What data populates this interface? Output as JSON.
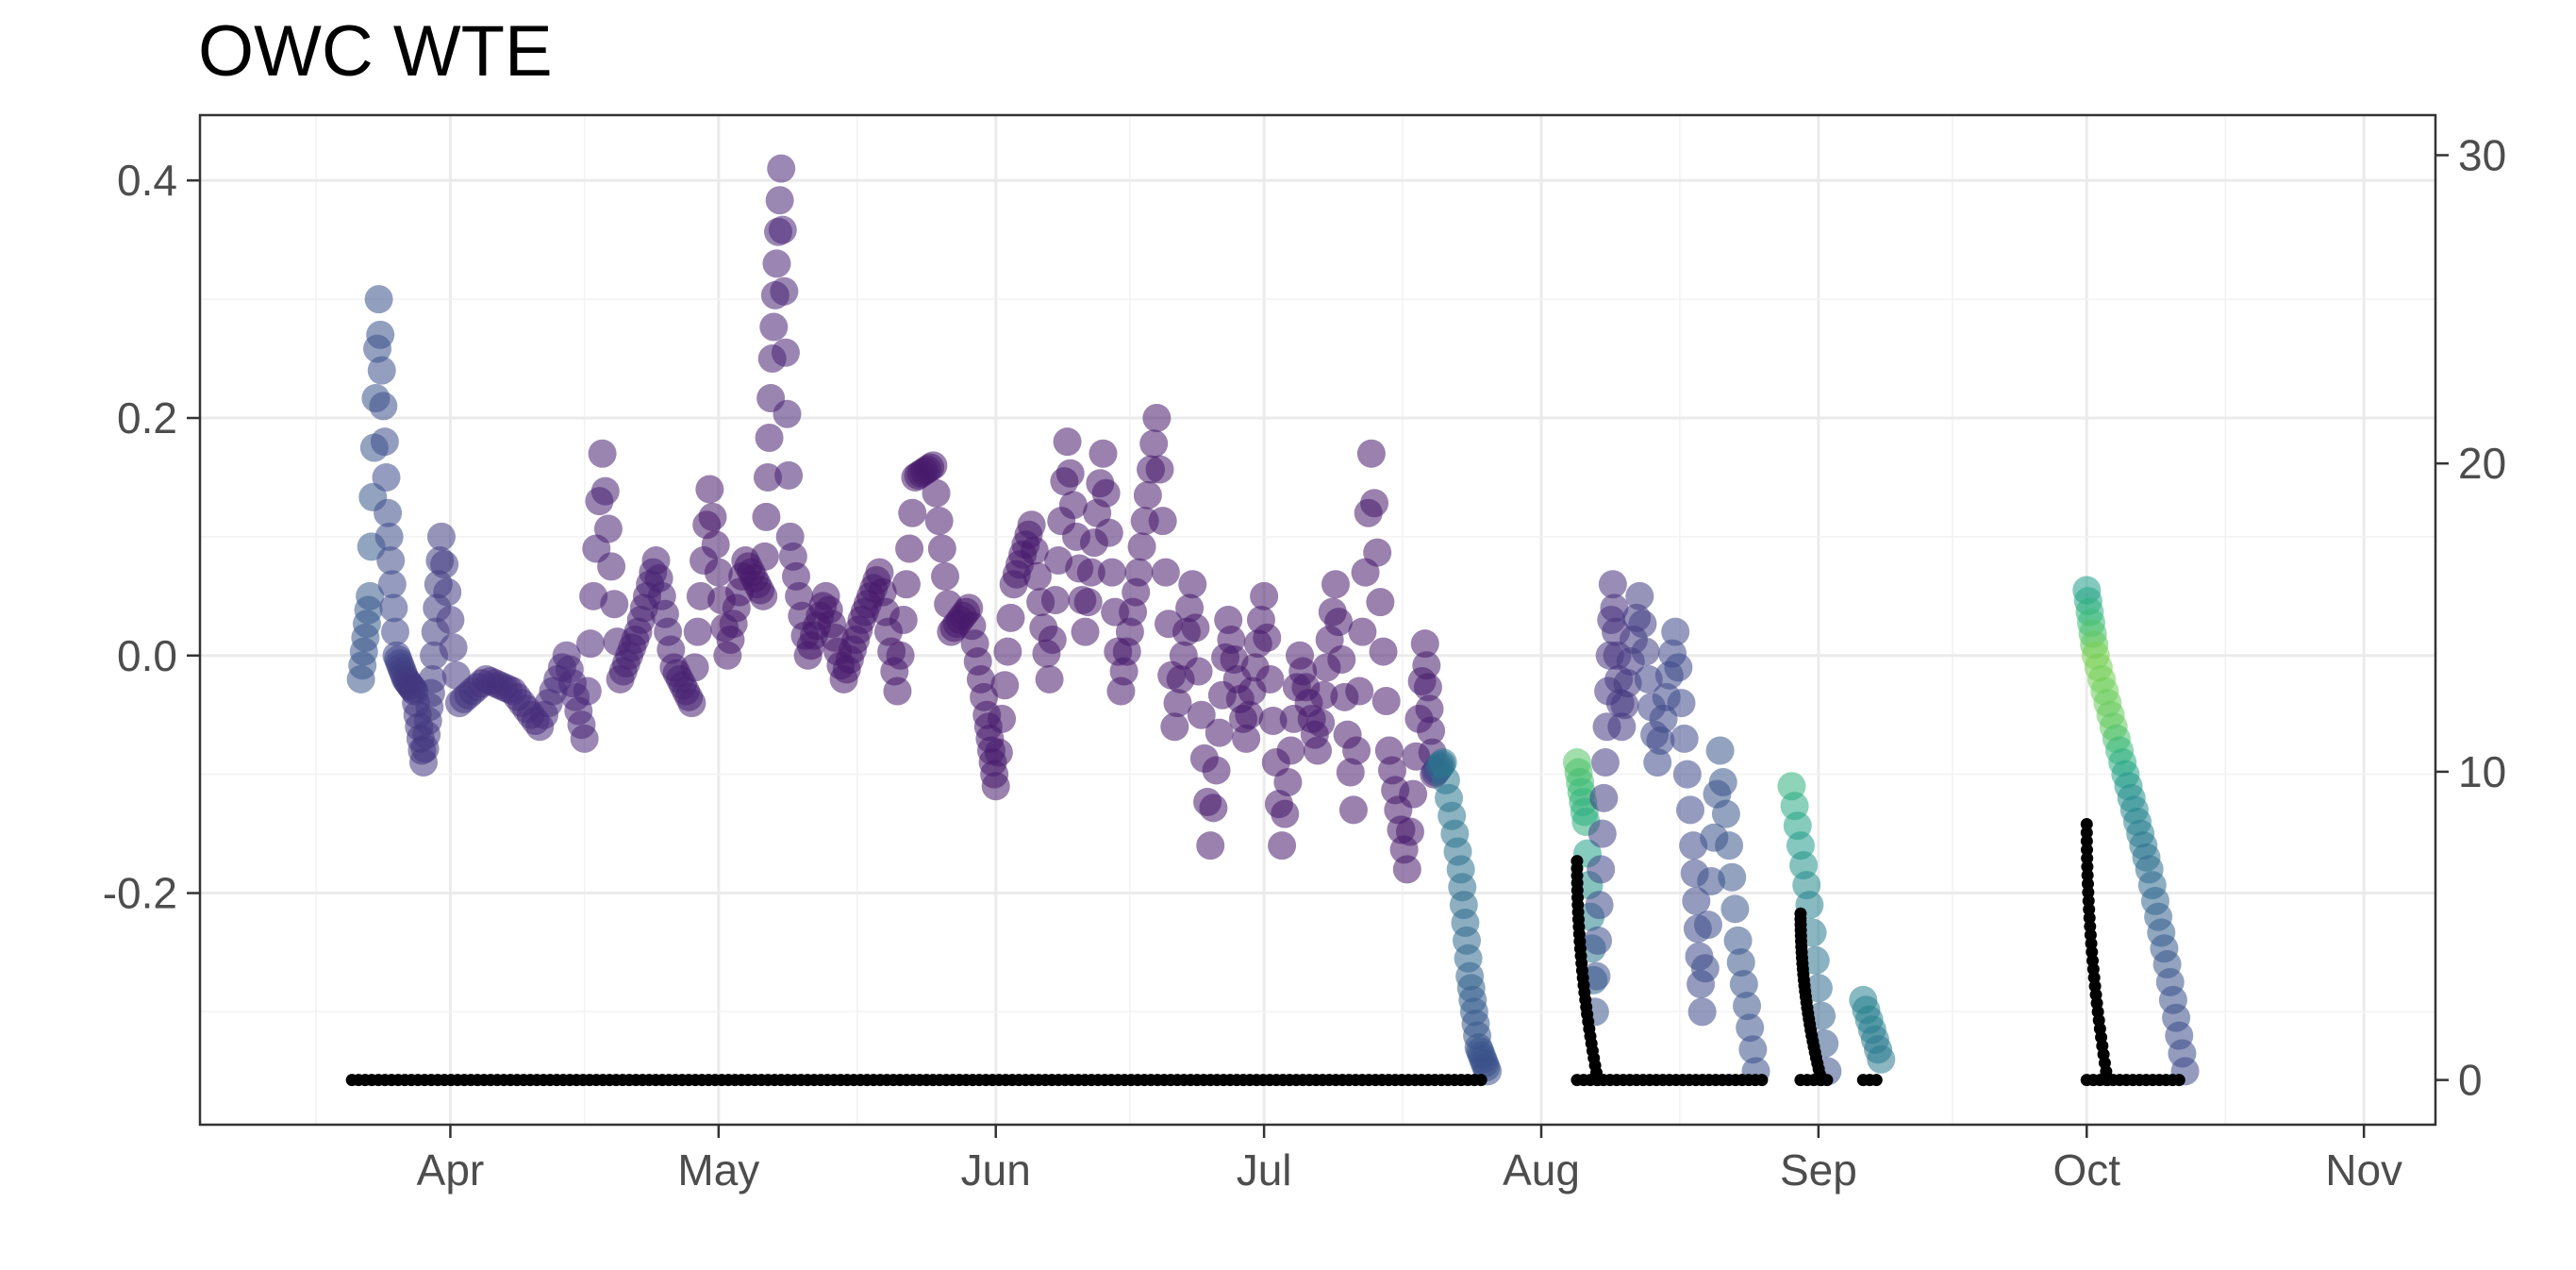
{
  "chart_data": {
    "type": "scatter",
    "title": "OWC WTE",
    "xlabel": "",
    "ylabel": "",
    "grid": true,
    "legend": "none",
    "x_ticks": [
      {
        "date": "2021-04-01",
        "label": "Apr"
      },
      {
        "date": "2021-05-01",
        "label": "May"
      },
      {
        "date": "2021-06-01",
        "label": "Jun"
      },
      {
        "date": "2021-07-01",
        "label": "Jul"
      },
      {
        "date": "2021-08-01",
        "label": "Aug"
      },
      {
        "date": "2021-09-01",
        "label": "Sep"
      },
      {
        "date": "2021-10-01",
        "label": "Oct"
      },
      {
        "date": "2021-11-01",
        "label": "Nov"
      }
    ],
    "x_range": [
      "2021-03-04",
      "2021-11-09"
    ],
    "y_left": {
      "range": [
        -0.395,
        0.455
      ],
      "ticks": [
        -0.2,
        0.0,
        0.2,
        0.4
      ],
      "tick_labels": [
        "-0.2",
        "0.0",
        "0.2",
        "0.4"
      ]
    },
    "y_right": {
      "range": [
        -1.45,
        31.3
      ],
      "ticks": [
        0,
        10,
        20,
        30
      ],
      "tick_labels": [
        "0",
        "10",
        "20",
        "30"
      ]
    },
    "color_scale": {
      "name": "viridis",
      "low": "#440154",
      "mid_low": "#3b528b",
      "mid": "#21908c",
      "mid_high": "#5dc863",
      "high": "#8fd744"
    },
    "series": [
      {
        "axis": "left",
        "marker": "large semi-transparent circle",
        "color_by": "viridis value 0-1",
        "points": [
          {
            "x": "2021-03-22",
            "y": -0.02,
            "c": 0.3
          },
          {
            "x": "2021-03-23",
            "y": 0.05,
            "c": 0.32
          },
          {
            "x": "2021-03-24",
            "y": 0.3,
            "c": 0.28
          },
          {
            "x": "2021-03-25",
            "y": 0.12,
            "c": 0.26
          },
          {
            "x": "2021-03-26",
            "y": 0.0,
            "c": 0.24
          },
          {
            "x": "2021-03-27",
            "y": -0.02,
            "c": 0.2
          },
          {
            "x": "2021-03-28",
            "y": -0.03,
            "c": 0.18
          },
          {
            "x": "2021-03-29",
            "y": -0.09,
            "c": 0.18
          },
          {
            "x": "2021-03-30",
            "y": -0.02,
            "c": 0.2
          },
          {
            "x": "2021-03-31",
            "y": 0.1,
            "c": 0.2
          },
          {
            "x": "2021-04-02",
            "y": -0.04,
            "c": 0.18
          },
          {
            "x": "2021-04-05",
            "y": -0.02,
            "c": 0.16
          },
          {
            "x": "2021-04-08",
            "y": -0.03,
            "c": 0.15
          },
          {
            "x": "2021-04-11",
            "y": -0.06,
            "c": 0.14
          },
          {
            "x": "2021-04-14",
            "y": 0.0,
            "c": 0.13
          },
          {
            "x": "2021-04-16",
            "y": -0.07,
            "c": 0.12
          },
          {
            "x": "2021-04-18",
            "y": 0.17,
            "c": 0.1
          },
          {
            "x": "2021-04-20",
            "y": -0.02,
            "c": 0.1
          },
          {
            "x": "2021-04-22",
            "y": 0.02,
            "c": 0.1
          },
          {
            "x": "2021-04-24",
            "y": 0.08,
            "c": 0.1
          },
          {
            "x": "2021-04-26",
            "y": -0.01,
            "c": 0.1
          },
          {
            "x": "2021-04-28",
            "y": -0.04,
            "c": 0.1
          },
          {
            "x": "2021-04-30",
            "y": 0.14,
            "c": 0.08
          },
          {
            "x": "2021-05-02",
            "y": 0.0,
            "c": 0.08
          },
          {
            "x": "2021-05-04",
            "y": 0.08,
            "c": 0.08
          },
          {
            "x": "2021-05-06",
            "y": 0.05,
            "c": 0.08
          },
          {
            "x": "2021-05-07",
            "y": 0.25,
            "c": 0.1
          },
          {
            "x": "2021-05-08",
            "y": 0.41,
            "c": 0.12
          },
          {
            "x": "2021-05-09",
            "y": 0.1,
            "c": 0.1
          },
          {
            "x": "2021-05-11",
            "y": 0.0,
            "c": 0.08
          },
          {
            "x": "2021-05-13",
            "y": 0.05,
            "c": 0.08
          },
          {
            "x": "2021-05-15",
            "y": -0.02,
            "c": 0.08
          },
          {
            "x": "2021-05-17",
            "y": 0.03,
            "c": 0.08
          },
          {
            "x": "2021-05-19",
            "y": 0.07,
            "c": 0.08
          },
          {
            "x": "2021-05-21",
            "y": -0.03,
            "c": 0.08
          },
          {
            "x": "2021-05-23",
            "y": 0.15,
            "c": 0.08
          },
          {
            "x": "2021-05-25",
            "y": 0.16,
            "c": 0.08
          },
          {
            "x": "2021-05-27",
            "y": 0.02,
            "c": 0.08
          },
          {
            "x": "2021-05-29",
            "y": 0.04,
            "c": 0.08
          },
          {
            "x": "2021-05-31",
            "y": -0.05,
            "c": 0.08
          },
          {
            "x": "2021-06-01",
            "y": -0.11,
            "c": 0.08
          },
          {
            "x": "2021-06-03",
            "y": 0.06,
            "c": 0.08
          },
          {
            "x": "2021-06-05",
            "y": 0.11,
            "c": 0.08
          },
          {
            "x": "2021-06-07",
            "y": -0.02,
            "c": 0.08
          },
          {
            "x": "2021-06-09",
            "y": 0.18,
            "c": 0.08
          },
          {
            "x": "2021-06-11",
            "y": 0.02,
            "c": 0.08
          },
          {
            "x": "2021-06-13",
            "y": 0.17,
            "c": 0.08
          },
          {
            "x": "2021-06-15",
            "y": -0.03,
            "c": 0.08
          },
          {
            "x": "2021-06-17",
            "y": 0.07,
            "c": 0.08
          },
          {
            "x": "2021-06-19",
            "y": 0.2,
            "c": 0.08
          },
          {
            "x": "2021-06-21",
            "y": -0.06,
            "c": 0.08
          },
          {
            "x": "2021-06-23",
            "y": 0.06,
            "c": 0.08
          },
          {
            "x": "2021-06-25",
            "y": -0.16,
            "c": 0.08
          },
          {
            "x": "2021-06-27",
            "y": 0.03,
            "c": 0.08
          },
          {
            "x": "2021-06-29",
            "y": -0.07,
            "c": 0.08
          },
          {
            "x": "2021-07-01",
            "y": 0.05,
            "c": 0.08
          },
          {
            "x": "2021-07-03",
            "y": -0.16,
            "c": 0.08
          },
          {
            "x": "2021-07-05",
            "y": 0.0,
            "c": 0.08
          },
          {
            "x": "2021-07-07",
            "y": -0.08,
            "c": 0.08
          },
          {
            "x": "2021-07-09",
            "y": 0.06,
            "c": 0.08
          },
          {
            "x": "2021-07-11",
            "y": -0.13,
            "c": 0.08
          },
          {
            "x": "2021-07-13",
            "y": 0.17,
            "c": 0.08
          },
          {
            "x": "2021-07-15",
            "y": -0.08,
            "c": 0.08
          },
          {
            "x": "2021-07-17",
            "y": -0.18,
            "c": 0.08
          },
          {
            "x": "2021-07-19",
            "y": 0.01,
            "c": 0.08
          },
          {
            "x": "2021-07-20",
            "y": -0.1,
            "c": 0.1
          },
          {
            "x": "2021-07-21",
            "y": -0.09,
            "c": 0.45
          },
          {
            "x": "2021-07-23",
            "y": -0.18,
            "c": 0.42
          },
          {
            "x": "2021-07-24",
            "y": -0.27,
            "c": 0.36
          },
          {
            "x": "2021-07-25",
            "y": -0.33,
            "c": 0.3
          },
          {
            "x": "2021-07-26",
            "y": -0.35,
            "c": 0.28
          },
          {
            "x": "2021-08-05",
            "y": -0.09,
            "c": 0.82
          },
          {
            "x": "2021-08-06",
            "y": -0.14,
            "c": 0.7
          },
          {
            "x": "2021-08-07",
            "y": -0.3,
            "c": 0.3
          },
          {
            "x": "2021-08-08",
            "y": -0.12,
            "c": 0.2
          },
          {
            "x": "2021-08-09",
            "y": 0.06,
            "c": 0.15
          },
          {
            "x": "2021-08-10",
            "y": -0.06,
            "c": 0.18
          },
          {
            "x": "2021-08-12",
            "y": 0.05,
            "c": 0.2
          },
          {
            "x": "2021-08-14",
            "y": -0.09,
            "c": 0.25
          },
          {
            "x": "2021-08-16",
            "y": 0.02,
            "c": 0.25
          },
          {
            "x": "2021-08-18",
            "y": -0.16,
            "c": 0.25
          },
          {
            "x": "2021-08-19",
            "y": -0.3,
            "c": 0.25
          },
          {
            "x": "2021-08-21",
            "y": -0.08,
            "c": 0.3
          },
          {
            "x": "2021-08-23",
            "y": -0.24,
            "c": 0.3
          },
          {
            "x": "2021-08-25",
            "y": -0.35,
            "c": 0.28
          },
          {
            "x": "2021-08-29",
            "y": -0.11,
            "c": 0.72
          },
          {
            "x": "2021-08-31",
            "y": -0.21,
            "c": 0.5
          },
          {
            "x": "2021-09-02",
            "y": -0.35,
            "c": 0.28
          },
          {
            "x": "2021-09-06",
            "y": -0.29,
            "c": 0.5
          },
          {
            "x": "2021-09-08",
            "y": -0.34,
            "c": 0.45
          },
          {
            "x": "2021-10-01",
            "y": 0.055,
            "c": 0.62
          },
          {
            "x": "2021-10-02",
            "y": 0.0,
            "c": 0.9
          },
          {
            "x": "2021-10-04",
            "y": -0.06,
            "c": 0.85
          },
          {
            "x": "2021-10-06",
            "y": -0.12,
            "c": 0.55
          },
          {
            "x": "2021-10-08",
            "y": -0.18,
            "c": 0.4
          },
          {
            "x": "2021-10-10",
            "y": -0.26,
            "c": 0.3
          },
          {
            "x": "2021-10-12",
            "y": -0.35,
            "c": 0.25
          }
        ]
      },
      {
        "axis": "right",
        "marker": "small black dot",
        "color": "#000000",
        "segments": [
          {
            "from": "2021-03-21",
            "to": "2021-07-26",
            "y": 0
          },
          {
            "spike_at": "2021-08-05",
            "peak": 7.1
          },
          {
            "from": "2021-08-05",
            "to": "2021-08-26",
            "y": 0
          },
          {
            "spike_at": "2021-08-30",
            "peak": 5.4
          },
          {
            "from": "2021-08-30",
            "to": "2021-09-02",
            "y": 0
          },
          {
            "from": "2021-09-06",
            "to": "2021-09-08",
            "y": 0
          },
          {
            "spike_at": "2021-10-01",
            "peak": 8.3
          },
          {
            "from": "2021-10-01",
            "to": "2021-10-12",
            "y": 0
          }
        ]
      }
    ]
  }
}
